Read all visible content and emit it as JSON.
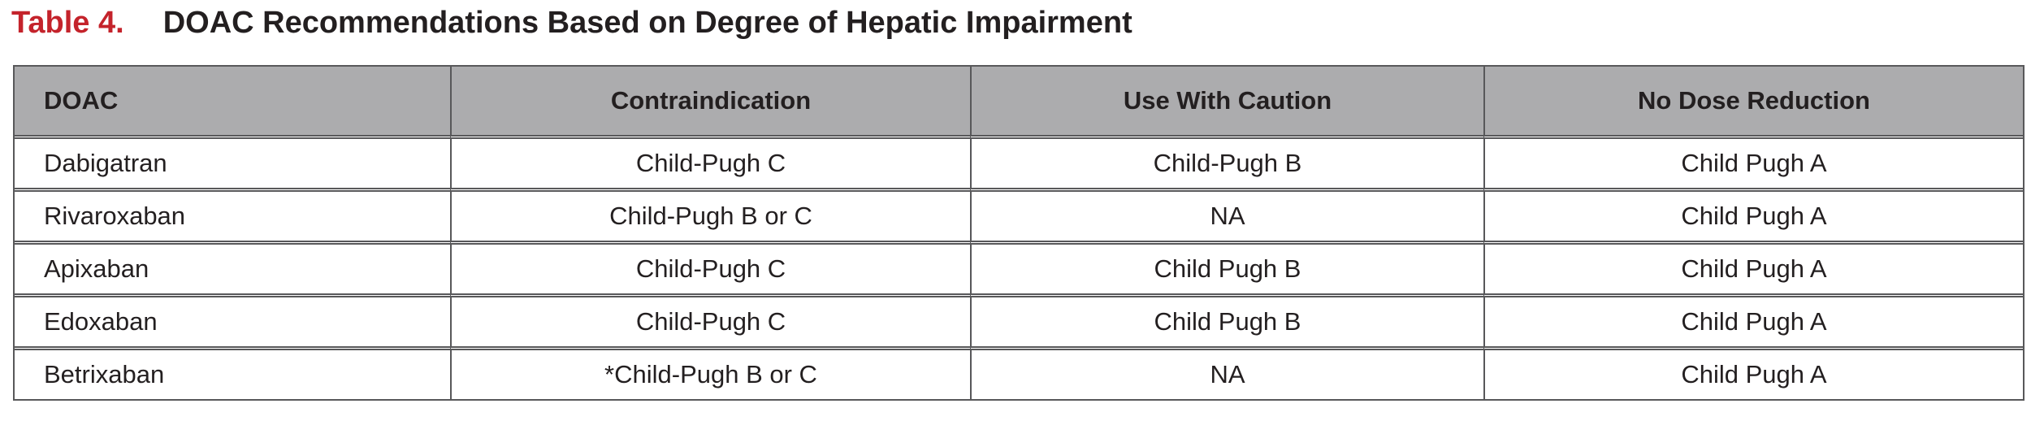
{
  "title": {
    "label": "Table 4.",
    "text": "DOAC Recommendations Based on Degree of Hepatic Impairment"
  },
  "colors": {
    "title_label": "#c4232b",
    "header_bg": "#acacae",
    "border": "#58585a",
    "text": "#231f20"
  },
  "table": {
    "columns": [
      "DOAC",
      "Contraindication",
      "Use With Caution",
      "No Dose Reduction"
    ],
    "rows": [
      [
        "Dabigatran",
        "Child-Pugh C",
        "Child-Pugh B",
        "Child Pugh A"
      ],
      [
        "Rivaroxaban",
        "Child-Pugh B or C",
        "NA",
        "Child Pugh A"
      ],
      [
        "Apixaban",
        "Child-Pugh C",
        "Child Pugh B",
        "Child Pugh A"
      ],
      [
        "Edoxaban",
        "Child-Pugh C",
        "Child Pugh B",
        "Child Pugh A"
      ],
      [
        "Betrixaban",
        "*Child-Pugh B or C",
        "NA",
        "Child Pugh A"
      ]
    ]
  }
}
